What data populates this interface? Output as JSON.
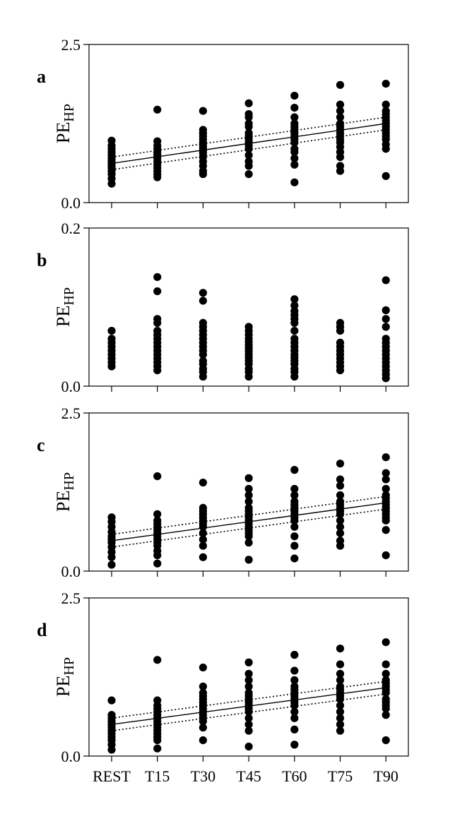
{
  "chart_data": [
    {
      "type": "scatter",
      "panel_label": "a",
      "ylabel": "PE",
      "ylabel_sub": "HP",
      "categories": [
        "REST",
        "T15",
        "T30",
        "T45",
        "T60",
        "T75",
        "T90"
      ],
      "ylim": [
        0.0,
        2.5
      ],
      "ytick_labels": [
        "0.0",
        "2.5"
      ],
      "points": [
        [
          0.3,
          0.38,
          0.45,
          0.5,
          0.55,
          0.58,
          0.62,
          0.66,
          0.7,
          0.75,
          0.8,
          0.85,
          0.9,
          0.98
        ],
        [
          0.4,
          0.45,
          0.5,
          0.55,
          0.6,
          0.65,
          0.7,
          0.73,
          0.76,
          0.8,
          0.85,
          0.9,
          0.97,
          1.47
        ],
        [
          0.45,
          0.5,
          0.58,
          0.65,
          0.72,
          0.78,
          0.82,
          0.86,
          0.9,
          0.95,
          1.0,
          1.05,
          1.1,
          1.15,
          1.45
        ],
        [
          0.45,
          0.58,
          0.65,
          0.75,
          0.85,
          0.9,
          0.95,
          1.0,
          1.05,
          1.1,
          1.2,
          1.25,
          1.35,
          1.4,
          1.57
        ],
        [
          0.32,
          0.6,
          0.7,
          0.8,
          0.85,
          0.95,
          1.0,
          1.05,
          1.1,
          1.15,
          1.2,
          1.25,
          1.35,
          1.5,
          1.69
        ],
        [
          0.5,
          0.58,
          0.72,
          0.8,
          0.88,
          0.95,
          1.0,
          1.05,
          1.1,
          1.15,
          1.2,
          1.25,
          1.35,
          1.45,
          1.55,
          1.86
        ],
        [
          0.42,
          0.85,
          0.92,
          1.0,
          1.05,
          1.1,
          1.15,
          1.2,
          1.25,
          1.3,
          1.35,
          1.4,
          1.45,
          1.55,
          1.88
        ]
      ],
      "fit": {
        "y_start": 0.62,
        "y_end": 1.25,
        "band_start": 0.1,
        "band_end": 0.1
      }
    },
    {
      "type": "scatter",
      "panel_label": "b",
      "ylabel": "PE",
      "ylabel_sub": "HP",
      "categories": [
        "REST",
        "T15",
        "T30",
        "T45",
        "T60",
        "T75",
        "T90"
      ],
      "ylim": [
        0.0,
        0.2
      ],
      "ytick_labels": [
        "0.0",
        "0.2"
      ],
      "points": [
        [
          0.025,
          0.03,
          0.035,
          0.04,
          0.045,
          0.05,
          0.055,
          0.06,
          0.07
        ],
        [
          0.02,
          0.025,
          0.03,
          0.035,
          0.04,
          0.045,
          0.05,
          0.055,
          0.06,
          0.065,
          0.07,
          0.08,
          0.085,
          0.12,
          0.138
        ],
        [
          0.012,
          0.018,
          0.022,
          0.028,
          0.032,
          0.04,
          0.045,
          0.05,
          0.055,
          0.06,
          0.065,
          0.07,
          0.075,
          0.08,
          0.108,
          0.118
        ],
        [
          0.012,
          0.018,
          0.022,
          0.028,
          0.032,
          0.036,
          0.04,
          0.044,
          0.048,
          0.052,
          0.056,
          0.06,
          0.065,
          0.07,
          0.075
        ],
        [
          0.012,
          0.018,
          0.022,
          0.028,
          0.032,
          0.036,
          0.04,
          0.045,
          0.05,
          0.055,
          0.06,
          0.07,
          0.08,
          0.085,
          0.09,
          0.095,
          0.102,
          0.11
        ],
        [
          0.02,
          0.025,
          0.03,
          0.035,
          0.04,
          0.045,
          0.05,
          0.055,
          0.07,
          0.075,
          0.08
        ],
        [
          0.01,
          0.015,
          0.02,
          0.025,
          0.03,
          0.035,
          0.04,
          0.045,
          0.05,
          0.055,
          0.06,
          0.075,
          0.085,
          0.096,
          0.134
        ]
      ]
    },
    {
      "type": "scatter",
      "panel_label": "c",
      "ylabel": "PE",
      "ylabel_sub": "HP",
      "categories": [
        "REST",
        "T15",
        "T30",
        "T45",
        "T60",
        "T75",
        "T90"
      ],
      "ylim": [
        0.0,
        2.5
      ],
      "ytick_labels": [
        "0.0",
        "2.5"
      ],
      "points": [
        [
          0.1,
          0.22,
          0.3,
          0.38,
          0.45,
          0.5,
          0.55,
          0.62,
          0.7,
          0.78,
          0.85
        ],
        [
          0.12,
          0.25,
          0.32,
          0.4,
          0.45,
          0.5,
          0.55,
          0.6,
          0.65,
          0.7,
          0.75,
          0.8,
          0.9,
          1.5
        ],
        [
          0.22,
          0.4,
          0.5,
          0.6,
          0.7,
          0.75,
          0.8,
          0.85,
          0.9,
          0.95,
          1.0,
          1.4
        ],
        [
          0.18,
          0.45,
          0.55,
          0.6,
          0.65,
          0.7,
          0.75,
          0.8,
          0.85,
          0.9,
          0.95,
          1.0,
          1.1,
          1.2,
          1.3,
          1.47
        ],
        [
          0.2,
          0.4,
          0.55,
          0.7,
          0.8,
          0.85,
          0.9,
          0.95,
          1.0,
          1.05,
          1.1,
          1.2,
          1.3,
          1.6
        ],
        [
          0.4,
          0.48,
          0.6,
          0.7,
          0.8,
          0.9,
          0.95,
          1.0,
          1.05,
          1.1,
          1.2,
          1.35,
          1.45,
          1.7
        ],
        [
          0.25,
          0.65,
          0.8,
          0.85,
          0.9,
          0.95,
          1.0,
          1.05,
          1.1,
          1.15,
          1.2,
          1.3,
          1.45,
          1.55,
          1.8
        ]
      ],
      "fit": {
        "y_start": 0.48,
        "y_end": 1.08,
        "band_start": 0.1,
        "band_end": 0.1
      }
    },
    {
      "type": "scatter",
      "panel_label": "d",
      "ylabel": "PE",
      "ylabel_sub": "HP",
      "categories": [
        "REST",
        "T15",
        "T30",
        "T45",
        "T60",
        "T75",
        "T90"
      ],
      "ylim": [
        0.0,
        2.5
      ],
      "ytick_labels": [
        "0.0",
        "2.5"
      ],
      "points": [
        [
          0.1,
          0.18,
          0.25,
          0.3,
          0.35,
          0.4,
          0.45,
          0.5,
          0.55,
          0.6,
          0.65,
          0.88
        ],
        [
          0.12,
          0.25,
          0.3,
          0.35,
          0.4,
          0.45,
          0.5,
          0.55,
          0.6,
          0.65,
          0.7,
          0.75,
          0.8,
          0.88,
          1.52
        ],
        [
          0.25,
          0.45,
          0.55,
          0.6,
          0.65,
          0.7,
          0.75,
          0.8,
          0.85,
          0.9,
          0.95,
          1.0,
          1.1,
          1.4
        ],
        [
          0.15,
          0.4,
          0.5,
          0.6,
          0.7,
          0.75,
          0.8,
          0.85,
          0.9,
          0.95,
          1.0,
          1.1,
          1.2,
          1.3,
          1.48
        ],
        [
          0.18,
          0.42,
          0.6,
          0.7,
          0.8,
          0.85,
          0.9,
          0.95,
          1.0,
          1.05,
          1.1,
          1.2,
          1.35,
          1.6
        ],
        [
          0.4,
          0.5,
          0.6,
          0.7,
          0.8,
          0.9,
          0.95,
          1.0,
          1.05,
          1.1,
          1.2,
          1.3,
          1.45,
          1.7
        ],
        [
          0.25,
          0.65,
          0.75,
          0.8,
          0.85,
          0.9,
          1.0,
          1.05,
          1.1,
          1.15,
          1.2,
          1.3,
          1.45,
          1.8
        ]
      ],
      "fit": {
        "y_start": 0.5,
        "y_end": 1.08,
        "band_start": 0.1,
        "band_end": 0.1
      }
    }
  ]
}
